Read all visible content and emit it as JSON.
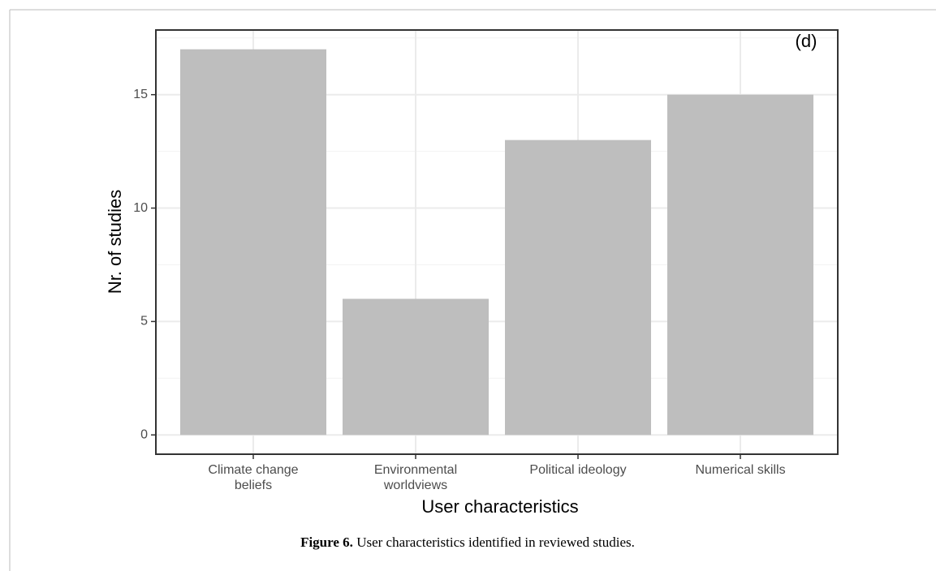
{
  "chart_data": {
    "type": "bar",
    "categories": [
      "Climate change\nbeliefs",
      "Environmental\nworldviews",
      "Political ideology",
      "Numerical skills"
    ],
    "values": [
      17,
      6,
      13,
      15
    ],
    "color": "#bebebe",
    "ylim": [
      -0.85,
      17.85
    ],
    "yticks": [
      0,
      5,
      10,
      15
    ],
    "grid": true,
    "xlabel": "User characteristics",
    "ylabel": "Nr. of studies",
    "annotation": "(d)"
  },
  "caption": {
    "label": "Figure 6.",
    "text": "User characteristics identified in reviewed studies."
  }
}
